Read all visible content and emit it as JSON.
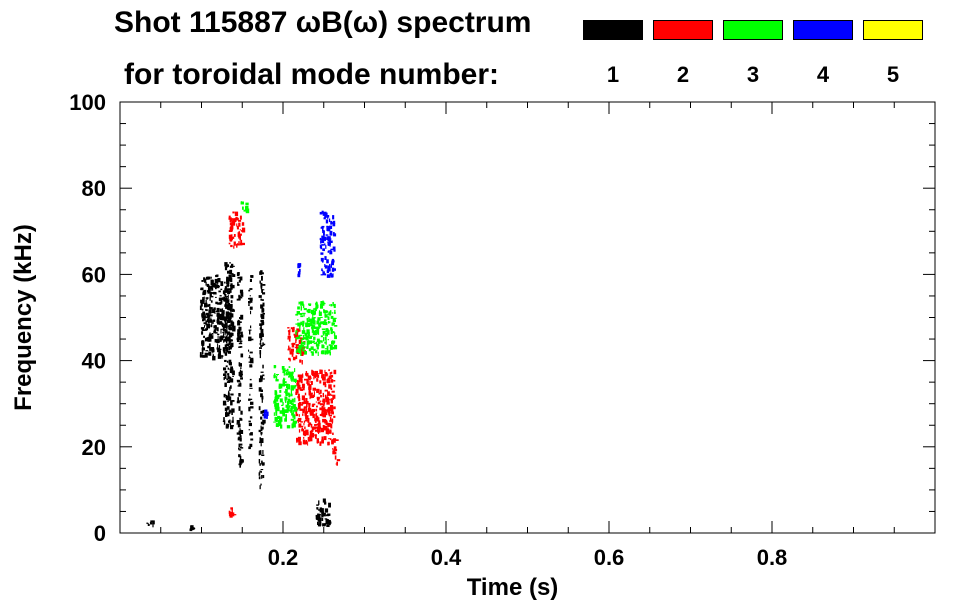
{
  "legend": {
    "title_line1": "Shot 115887 ωB(ω) spectrum",
    "title_line2": "for toroidal mode number:",
    "modes": [
      {
        "label": "1",
        "color": "#000000"
      },
      {
        "label": "2",
        "color": "#ff0000"
      },
      {
        "label": "3",
        "color": "#00ff00"
      },
      {
        "label": "4",
        "color": "#0000ff"
      },
      {
        "label": "5",
        "color": "#ffff00"
      }
    ]
  },
  "chart_data": {
    "type": "scatter",
    "title": "Shot 115887 ωB(ω) spectrum",
    "xlabel": "Time (s)",
    "ylabel": "Frequency (kHz)",
    "xlim": [
      0.0,
      1.0
    ],
    "ylim": [
      0,
      100
    ],
    "xticks": [
      0.2,
      0.4,
      0.6,
      0.8
    ],
    "xtick_labels": [
      "0.2",
      "0.4",
      "0.6",
      "0.8"
    ],
    "yticks": [
      0,
      20,
      40,
      60,
      80,
      100
    ],
    "ytick_labels": [
      "0",
      "20",
      "40",
      "60",
      "80",
      "100"
    ],
    "grid": false,
    "series": [
      {
        "name": "1",
        "color": "#000000",
        "regions": [
          {
            "x": [
              0.098,
              0.136
            ],
            "y": [
              41,
              60
            ]
          },
          {
            "x": [
              0.126,
              0.138
            ],
            "y": [
              25,
              63
            ]
          },
          {
            "x": [
              0.143,
              0.148
            ],
            "y": [
              16,
              61
            ]
          },
          {
            "x": [
              0.157,
              0.16
            ],
            "y": [
              20,
              60
            ]
          },
          {
            "x": [
              0.17,
              0.175
            ],
            "y": [
              11,
              61
            ]
          },
          {
            "x": [
              0.24,
              0.257
            ],
            "y": [
              2,
              8
            ]
          },
          {
            "x": [
              0.03,
              0.04
            ],
            "y": [
              2,
              3
            ]
          },
          {
            "x": [
              0.085,
              0.09
            ],
            "y": [
              1,
              2
            ]
          }
        ]
      },
      {
        "name": "2",
        "color": "#ff0000",
        "regions": [
          {
            "x": [
              0.215,
              0.262
            ],
            "y": [
              21,
              38
            ]
          },
          {
            "x": [
              0.133,
              0.15
            ],
            "y": [
              66,
              75
            ]
          },
          {
            "x": [
              0.133,
              0.14
            ],
            "y": [
              4,
              6
            ]
          },
          {
            "x": [
              0.205,
              0.225
            ],
            "y": [
              40,
              48
            ]
          },
          {
            "x": [
              0.26,
              0.266
            ],
            "y": [
              16,
              22
            ]
          }
        ]
      },
      {
        "name": "3",
        "color": "#00ff00",
        "regions": [
          {
            "x": [
              0.188,
              0.215
            ],
            "y": [
              25,
              39
            ]
          },
          {
            "x": [
              0.215,
              0.263
            ],
            "y": [
              42,
              54
            ]
          },
          {
            "x": [
              0.148,
              0.155
            ],
            "y": [
              75,
              77
            ]
          }
        ]
      },
      {
        "name": "4",
        "color": "#0000ff",
        "regions": [
          {
            "x": [
              0.245,
              0.262
            ],
            "y": [
              60,
              75
            ]
          },
          {
            "x": [
              0.216,
              0.22
            ],
            "y": [
              60,
              63
            ]
          },
          {
            "x": [
              0.175,
              0.18
            ],
            "y": [
              27,
              29
            ]
          }
        ]
      },
      {
        "name": "5",
        "color": "#ffff00",
        "regions": []
      }
    ]
  }
}
